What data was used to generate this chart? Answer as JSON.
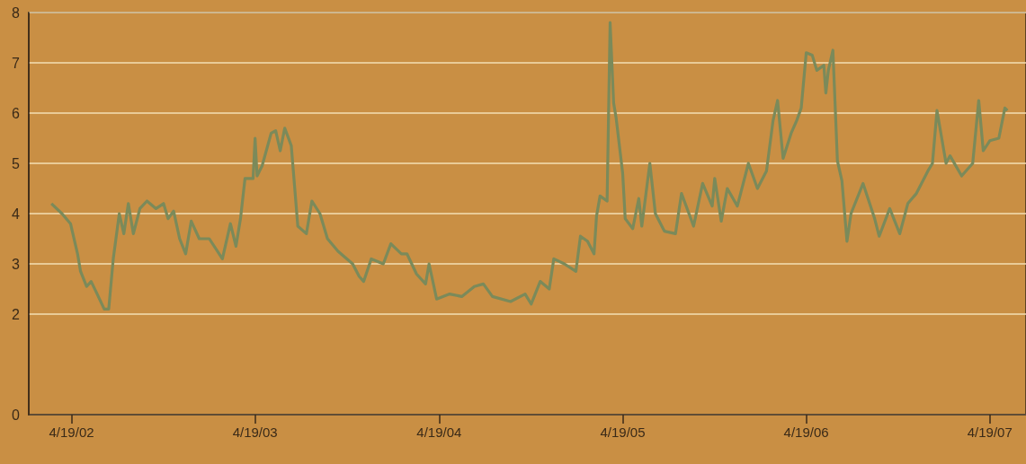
{
  "chart_data": {
    "type": "line",
    "grid": "y",
    "marker": "none",
    "line_style": "solid",
    "xlim": [
      "2002-01-24",
      "2007-06-30"
    ],
    "xticks": [
      {
        "value": "2002-04-19",
        "label": "4/19/02"
      },
      {
        "value": "2003-04-19",
        "label": "4/19/03"
      },
      {
        "value": "2004-04-19",
        "label": "4/19/04"
      },
      {
        "value": "2005-04-19",
        "label": "4/19/05"
      },
      {
        "value": "2006-04-19",
        "label": "4/19/06"
      },
      {
        "value": "2007-04-19",
        "label": "4/19/07"
      }
    ],
    "ylim": [
      0,
      8
    ],
    "yticks": [
      0,
      2,
      3,
      4,
      5,
      6,
      7,
      8
    ],
    "series": [
      {
        "color": "#7b8a5a",
        "x": [
          "2002-03-10",
          "2002-03-31",
          "2002-04-17",
          "2002-05-01",
          "2002-05-07",
          "2002-05-19",
          "2002-05-28",
          "2002-06-09",
          "2002-06-23",
          "2002-07-02",
          "2002-07-11",
          "2002-07-23",
          "2002-08-01",
          "2002-08-10",
          "2002-08-20",
          "2002-09-02",
          "2002-09-16",
          "2002-10-04",
          "2002-10-19",
          "2002-10-28",
          "2002-11-08",
          "2002-11-20",
          "2002-12-02",
          "2002-12-13",
          "2002-12-29",
          "2003-01-18",
          "2003-02-13",
          "2003-03-01",
          "2003-03-12",
          "2003-03-21",
          "2003-03-30",
          "2003-04-15",
          "2003-04-19",
          "2003-04-23",
          "2003-05-03",
          "2003-05-21",
          "2003-05-30",
          "2003-06-08",
          "2003-06-17",
          "2003-06-30",
          "2003-07-13",
          "2003-07-30",
          "2003-08-10",
          "2003-08-26",
          "2003-09-10",
          "2003-10-01",
          "2003-10-30",
          "2003-11-12",
          "2003-11-21",
          "2003-12-06",
          "2003-12-30",
          "2004-01-14",
          "2004-02-04",
          "2004-02-15",
          "2004-03-05",
          "2004-03-23",
          "2004-03-30",
          "2004-04-14",
          "2004-05-10",
          "2004-06-03",
          "2004-06-28",
          "2004-07-16",
          "2004-08-03",
          "2004-09-08",
          "2004-10-07",
          "2004-10-19",
          "2004-11-06",
          "2004-11-24",
          "2004-12-03",
          "2004-12-24",
          "2005-01-16",
          "2005-01-25",
          "2005-02-08",
          "2005-02-21",
          "2005-02-26",
          "2005-03-05",
          "2005-03-19",
          "2005-03-25",
          "2005-04-01",
          "2005-04-06",
          "2005-04-19",
          "2005-04-24",
          "2005-05-09",
          "2005-05-21",
          "2005-05-27",
          "2005-06-12",
          "2005-06-23",
          "2005-07-11",
          "2005-08-02",
          "2005-08-14",
          "2005-09-07",
          "2005-09-25",
          "2005-10-14",
          "2005-10-19",
          "2005-11-01",
          "2005-11-13",
          "2005-12-03",
          "2005-12-25",
          "2006-01-12",
          "2006-01-30",
          "2006-02-12",
          "2006-02-21",
          "2006-03-04",
          "2006-03-20",
          "2006-03-31",
          "2006-04-09",
          "2006-04-19",
          "2006-05-01",
          "2006-05-10",
          "2006-05-24",
          "2006-05-28",
          "2006-06-02",
          "2006-06-11",
          "2006-06-20",
          "2006-06-29",
          "2006-07-09",
          "2006-07-17",
          "2006-08-10",
          "2006-09-02",
          "2006-09-11",
          "2006-10-02",
          "2006-10-22",
          "2006-11-07",
          "2006-11-24",
          "2006-12-17",
          "2006-12-26",
          "2007-01-04",
          "2007-01-22",
          "2007-01-30",
          "2007-02-22",
          "2007-03-16",
          "2007-03-28",
          "2007-04-06",
          "2007-04-19",
          "2007-05-07",
          "2007-05-19",
          "2007-05-24"
        ],
        "values": [
          4.2,
          4.0,
          3.8,
          3.2,
          2.85,
          2.55,
          2.65,
          2.4,
          2.1,
          2.1,
          3.1,
          4.0,
          3.6,
          4.2,
          3.6,
          4.1,
          4.25,
          4.1,
          4.2,
          3.9,
          4.05,
          3.5,
          3.2,
          3.85,
          3.5,
          3.5,
          3.1,
          3.8,
          3.35,
          3.9,
          4.7,
          4.7,
          5.5,
          4.75,
          4.95,
          5.6,
          5.65,
          5.25,
          5.7,
          5.35,
          3.75,
          3.6,
          4.25,
          4.0,
          3.5,
          3.25,
          3.0,
          2.75,
          2.65,
          3.1,
          3.0,
          3.4,
          3.2,
          3.2,
          2.8,
          2.6,
          3.0,
          2.3,
          2.4,
          2.35,
          2.55,
          2.6,
          2.35,
          2.25,
          2.4,
          2.2,
          2.65,
          2.5,
          3.1,
          3.0,
          2.85,
          3.55,
          3.45,
          3.2,
          3.95,
          4.35,
          4.25,
          7.8,
          6.2,
          5.9,
          4.8,
          3.9,
          3.7,
          4.3,
          3.75,
          5.0,
          4.0,
          3.65,
          3.6,
          4.4,
          3.75,
          4.6,
          4.15,
          4.7,
          3.85,
          4.5,
          4.15,
          5.0,
          4.5,
          4.85,
          5.85,
          6.25,
          5.1,
          5.6,
          5.85,
          6.1,
          7.2,
          7.15,
          6.85,
          6.95,
          6.4,
          6.85,
          7.25,
          5.05,
          4.65,
          3.45,
          4.0,
          4.6,
          3.9,
          3.55,
          4.1,
          3.6,
          4.2,
          4.4,
          4.85,
          5.0,
          6.05,
          5.0,
          5.15,
          4.75,
          5.0,
          6.25,
          5.25,
          5.45,
          5.5,
          6.1,
          6.05
        ]
      }
    ]
  }
}
